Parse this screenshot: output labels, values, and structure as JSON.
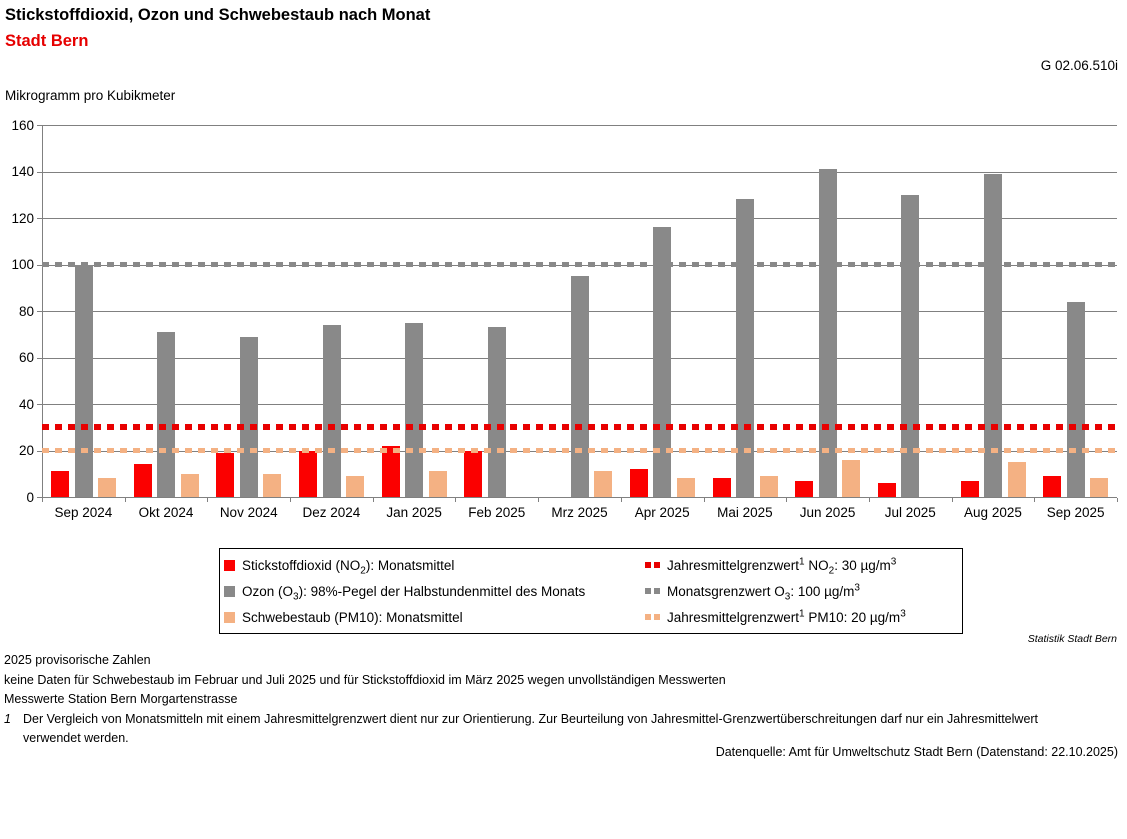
{
  "header": {
    "title": "Stickstoffdioxid, Ozon und Schwebestaub nach Monat",
    "subtitle": "Stadt Bern",
    "ref_code": "G 02.06.510i"
  },
  "chart_data": {
    "type": "bar",
    "title": "Stickstoffdioxid, Ozon und Schwebestaub nach Monat — Stadt Bern",
    "ylabel": "Mikrogramm pro Kubikmeter",
    "xlabel": "",
    "ylim": [
      0,
      160
    ],
    "ytick_step": 20,
    "grid": true,
    "legend_position": "bottom",
    "categories": [
      "Sep 2024",
      "Okt 2024",
      "Nov 2024",
      "Dez 2024",
      "Jan 2025",
      "Feb 2025",
      "Mrz 2025",
      "Apr 2025",
      "Mai 2025",
      "Jun 2025",
      "Jul 2025",
      "Aug 2025",
      "Sep 2025"
    ],
    "series": [
      {
        "name": "Stickstoffdioxid (NO2): Monatsmittel",
        "color": "#fb0000",
        "values": [
          11,
          14,
          19,
          20,
          22,
          20,
          null,
          12,
          8,
          7,
          6,
          7,
          9
        ]
      },
      {
        "name": "Ozon (O3): 98%-Pegel der Halbstundenmittel des Monats",
        "color": "#898989",
        "values": [
          100,
          71,
          69,
          74,
          75,
          73,
          95,
          116,
          128,
          141,
          130,
          139,
          84
        ]
      },
      {
        "name": "Schwebestaub (PM10): Monatsmittel",
        "color": "#f4b183",
        "values": [
          8,
          10,
          10,
          9,
          11,
          null,
          11,
          8,
          9,
          16,
          null,
          15,
          8
        ]
      }
    ],
    "reference_lines": [
      {
        "name": "Jahresmittelgrenzwert NO2: 30 µg/m3",
        "value": 30,
        "color": "#e80000",
        "thickness": 6
      },
      {
        "name": "Monatsgrenzwert O3: 100 µg/m3",
        "value": 100,
        "color": "#898989",
        "thickness": 5
      },
      {
        "name": "Jahresmittelgrenzwert PM10: 20 µg/m3",
        "value": 20,
        "color": "#f4b183",
        "thickness": 5
      }
    ]
  },
  "legend": {
    "bar_items": [
      {
        "label": "Stickstoffdioxid (NO~2~): Monatsmittel"
      },
      {
        "label": "Ozon (O~3~): 98%-Pegel der Halbstundenmittel des Monats"
      },
      {
        "label": "Schwebestaub (PM10): Monatsmittel"
      }
    ],
    "line_items": [
      {
        "label": "Jahresmittelgrenzwert^1^  NO~2~: 30 µg/m^3^"
      },
      {
        "label": "Monatsgrenzwert O~3~: 100 µg/m^3^"
      },
      {
        "label": "Jahresmittelgrenzwert^1^  PM10: 20 µg/m^3^"
      }
    ]
  },
  "footer": {
    "attribution": "Statistik Stadt Bern",
    "notes": [
      "2025 provisorische Zahlen",
      "keine Daten für Schwebestaub im Februar und Juli 2025 und für Stickstoffdioxid im März 2025 wegen unvollständigen Messwerten",
      "Messwerte Station Bern Morgartenstrasse"
    ],
    "footnote_1": {
      "marker": "1",
      "text": "Der Vergleich von Monatsmitteln mit einem Jahresmittelgrenzwert dient nur zur Orientierung. Zur Beurteilung von Jahresmittel-Grenzwertüberschreitungen darf nur ein Jahresmittelwert verwendet werden."
    },
    "source": "Datenquelle: Amt für Umweltschutz Stadt Bern (Datenstand: 22.10.2025)"
  }
}
